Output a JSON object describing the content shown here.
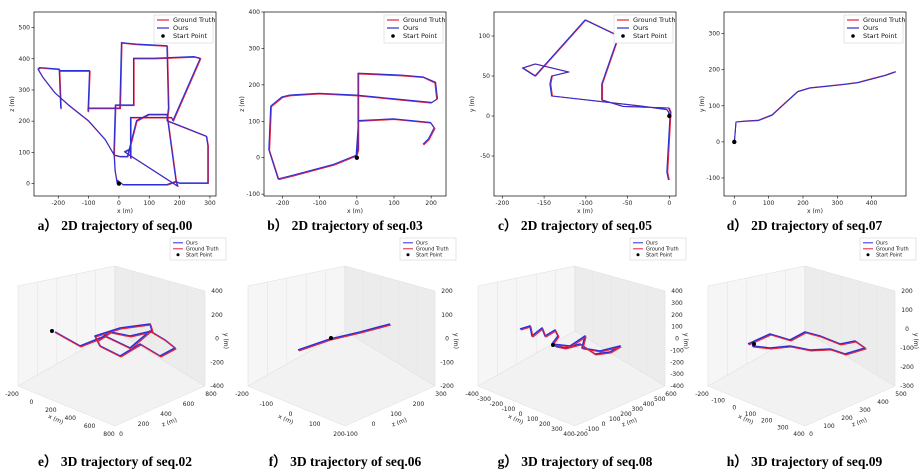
{
  "colors": {
    "ground_truth": "#e8203a",
    "ours": "#2b2fd6",
    "start": "#000000"
  },
  "chart_data": [
    {
      "id": "p00",
      "type": "line",
      "caption": "a） 2D trajectory of seq.00",
      "xlabel": "x (m)",
      "ylabel": "z (m)",
      "xlim": [
        -280,
        320
      ],
      "ylim": [
        -40,
        550
      ],
      "xticks": [
        -200,
        -100,
        0,
        100,
        200,
        300
      ],
      "yticks": [
        0,
        100,
        200,
        300,
        400,
        500
      ],
      "legend": [
        "Ground Truth",
        "Ours",
        "Start Point"
      ],
      "series": [
        {
          "name": "Ground Truth",
          "x": [
            0,
            -5,
            -12,
            -15,
            -45,
            -100,
            -165,
            -210,
            -250,
            -265,
            -260,
            -195,
            -190,
            -195,
            -95,
            -100,
            -100,
            5,
            10,
            60,
            160,
            165,
            160,
            290,
            295,
            295,
            200,
            190,
            195,
            20,
            40,
            40,
            40,
            175,
            180,
            270,
            250,
            120,
            50,
            50,
            -10,
            -15,
            5,
            30,
            60,
            100,
            160,
            190,
            160,
            60,
            15,
            -5,
            0
          ],
          "y": [
            0,
            0,
            40,
            90,
            140,
            200,
            250,
            290,
            340,
            365,
            370,
            365,
            240,
            360,
            360,
            230,
            240,
            240,
            450,
            445,
            440,
            240,
            200,
            150,
            120,
            0,
            0,
            5,
            -10,
            100,
            110,
            80,
            210,
            210,
            200,
            400,
            405,
            400,
            400,
            250,
            250,
            90,
            85,
            85,
            200,
            220,
            220,
            5,
            -5,
            -5,
            -5,
            10,
            0
          ]
        },
        {
          "name": "Ours",
          "x": [
            0,
            -6,
            -13,
            -16,
            -46,
            -101,
            -166,
            -212,
            -252,
            -267,
            -262,
            -197,
            -192,
            -197,
            -97,
            -102,
            -102,
            3,
            8,
            58,
            158,
            163,
            158,
            288,
            293,
            293,
            198,
            188,
            193,
            18,
            38,
            38,
            38,
            173,
            178,
            268,
            248,
            118,
            48,
            48,
            -12,
            -17,
            3,
            28,
            58,
            98,
            158,
            188,
            158,
            58,
            13,
            -7,
            0
          ],
          "y": [
            0,
            2,
            42,
            92,
            142,
            202,
            252,
            292,
            342,
            367,
            372,
            367,
            242,
            362,
            362,
            232,
            242,
            242,
            452,
            447,
            442,
            242,
            202,
            152,
            122,
            2,
            2,
            7,
            -8,
            102,
            112,
            82,
            212,
            212,
            202,
            402,
            407,
            402,
            402,
            252,
            252,
            92,
            87,
            87,
            202,
            222,
            222,
            7,
            -3,
            -3,
            -3,
            12,
            0
          ]
        }
      ],
      "start": [
        0,
        0
      ]
    },
    {
      "id": "p03",
      "type": "line",
      "caption": "b） 2D trajectory of seq.03",
      "xlabel": "x (m)",
      "ylabel": "z (m)",
      "xlim": [
        -250,
        240
      ],
      "ylim": [
        -105,
        400
      ],
      "xticks": [
        -200,
        -100,
        0,
        100,
        200
      ],
      "yticks": [
        -100,
        0,
        100,
        200,
        300,
        400
      ],
      "legend": [
        "Ground Truth",
        "Ours",
        "Start Point"
      ],
      "series": [
        {
          "name": "Ground Truth",
          "x": [
            0,
            0,
            5,
            5,
            120,
            180,
            210,
            215,
            200,
            100,
            0,
            -100,
            -180,
            -200,
            -230,
            -235,
            -210,
            -170,
            -60,
            0,
            5,
            5,
            100,
            200,
            210,
            195,
            180
          ],
          "y": [
            0,
            5,
            80,
            230,
            225,
            220,
            205,
            160,
            150,
            160,
            170,
            175,
            170,
            165,
            140,
            20,
            -60,
            -50,
            -20,
            5,
            20,
            100,
            105,
            95,
            80,
            50,
            35
          ]
        },
        {
          "name": "Ours",
          "x": [
            0,
            -2,
            3,
            3,
            118,
            178,
            212,
            217,
            202,
            98,
            -2,
            -102,
            -182,
            -202,
            -232,
            -237,
            -212,
            -172,
            -62,
            -2,
            3,
            3,
            98,
            198,
            208,
            193,
            178
          ],
          "y": [
            0,
            6,
            82,
            232,
            227,
            222,
            207,
            162,
            152,
            162,
            172,
            177,
            172,
            167,
            142,
            22,
            -58,
            -48,
            -18,
            7,
            22,
            102,
            107,
            97,
            82,
            52,
            37
          ]
        }
      ],
      "start": [
        0,
        0
      ]
    },
    {
      "id": "p05",
      "type": "line",
      "caption": "c） 2D trajectory of seq.05",
      "xlabel": "x (m)",
      "ylabel": "y (m)",
      "xlim": [
        -210,
        8
      ],
      "ylim": [
        -100,
        130
      ],
      "xticks": [
        -200,
        -150,
        -100,
        -50,
        0
      ],
      "yticks": [
        -50,
        0,
        50,
        100
      ],
      "legend": [
        "Ground Truth",
        "Ours",
        "Start Point"
      ],
      "series": [
        {
          "name": "Ground Truth",
          "x": [
            0,
            -1,
            -3,
            -30,
            -140,
            -142,
            -140,
            -120,
            -160,
            -175,
            -160,
            -100,
            -60,
            -80,
            -80,
            -55,
            0,
            2,
            -2,
            0
          ],
          "y": [
            0,
            5,
            8,
            12,
            25,
            40,
            50,
            55,
            65,
            60,
            50,
            120,
            100,
            40,
            20,
            12,
            10,
            5,
            -70,
            -80
          ]
        },
        {
          "name": "Ours",
          "x": [
            0,
            -1,
            -3,
            -31,
            -141,
            -143,
            -141,
            -121,
            -161,
            -176,
            -161,
            -101,
            -61,
            -81,
            -81,
            -56,
            -1,
            1,
            -3,
            -1
          ],
          "y": [
            0,
            5,
            8,
            12,
            25,
            40,
            50,
            55,
            65,
            60,
            50,
            120,
            100,
            40,
            20,
            12,
            10,
            5,
            -70,
            -80
          ]
        }
      ],
      "start": [
        0,
        0
      ]
    },
    {
      "id": "p07",
      "type": "line",
      "caption": "d） 2D trajectory of seq.07",
      "xlabel": "x (m)",
      "ylabel": "y (m)",
      "xlim": [
        -30,
        500
      ],
      "ylim": [
        -150,
        360
      ],
      "xticks": [
        0,
        100,
        200,
        300,
        400
      ],
      "yticks": [
        -100,
        0,
        100,
        200,
        300
      ],
      "legend": [
        "Ground Truth",
        "Ours",
        "Start Point"
      ],
      "series": [
        {
          "name": "Ground Truth",
          "x": [
            0,
            2,
            5,
            30,
            70,
            110,
            150,
            185,
            220,
            270,
            320,
            360,
            400,
            440,
            470
          ],
          "y": [
            0,
            20,
            55,
            58,
            60,
            75,
            110,
            140,
            150,
            155,
            160,
            165,
            175,
            185,
            195
          ]
        },
        {
          "name": "Ours",
          "x": [
            0,
            2,
            5,
            30,
            70,
            110,
            150,
            185,
            220,
            270,
            320,
            360,
            400,
            440,
            470
          ],
          "y": [
            0,
            20,
            55,
            57,
            59,
            74,
            109,
            139,
            149,
            154,
            159,
            164,
            174,
            184,
            194
          ]
        }
      ],
      "start": [
        0,
        0
      ]
    },
    {
      "id": "p02",
      "type": "line3d",
      "caption": "e） 3D trajectory of seq.02",
      "legend": [
        "Ours",
        "Ground Truth",
        "Start Point"
      ],
      "xticks": [
        "-200",
        "0",
        "200",
        "400",
        "600",
        "800"
      ],
      "xlabel": "x (m)",
      "yticks": [
        "0",
        "200",
        "400",
        "600",
        "800"
      ],
      "ylabel": "z (m)",
      "zticks": [
        "400",
        "200",
        "0",
        "-200",
        "-400"
      ],
      "zlabel": "y (m)"
    },
    {
      "id": "p06",
      "type": "line3d",
      "caption": "f） 3D trajectory of seq.06",
      "legend": [
        "Ours",
        "Ground Truth",
        "Start Point"
      ],
      "xticks": [
        "-200",
        "-100",
        "0",
        "100",
        "200"
      ],
      "xlabel": "x (m)",
      "yticks": [
        "-100",
        "0",
        "100",
        "200",
        "300"
      ],
      "ylabel": "z (m)",
      "zticks": [
        "200",
        "100",
        "0",
        "-100",
        "-200"
      ],
      "zlabel": "y (m)"
    },
    {
      "id": "p08",
      "type": "line3d",
      "caption": "g） 3D trajectory of seq.08",
      "legend": [
        "Ours",
        "Ground Truth",
        "Start Point"
      ],
      "xticks": [
        "-400",
        "-300",
        "-200",
        "-100",
        "0",
        "100",
        "200",
        "300",
        "400"
      ],
      "xlabel": "x (m)",
      "yticks": [
        "-200",
        "-100",
        "0",
        "100",
        "200",
        "300",
        "400",
        "500",
        "600"
      ],
      "ylabel": "z (m)",
      "zticks": [
        "400",
        "300",
        "200",
        "100",
        "0",
        "-100",
        "-200",
        "-300",
        "-400"
      ],
      "zlabel": "y (m)"
    },
    {
      "id": "p09",
      "type": "line3d",
      "caption": "h） 3D trajectory of seq.09",
      "legend": [
        "Ours",
        "Ground Truth",
        "Start Point"
      ],
      "xticks": [
        "-200",
        "-100",
        "0",
        "100",
        "200",
        "300",
        "400"
      ],
      "xlabel": "x (m)",
      "yticks": [
        "0",
        "100",
        "200",
        "300",
        "400",
        "500"
      ],
      "ylabel": "z (m)",
      "zticks": [
        "200",
        "100",
        "0",
        "-100",
        "-200",
        "-300"
      ],
      "zlabel": "y (m)"
    }
  ]
}
